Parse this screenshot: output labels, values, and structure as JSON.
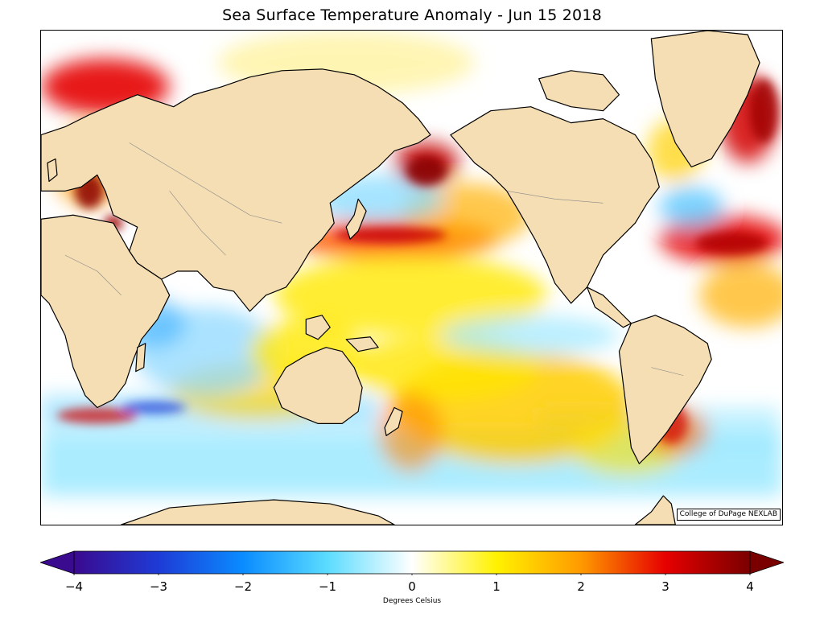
{
  "title": "Sea Surface Temperature Anomaly - Jun 15 2018",
  "credit": "College of DuPage NEXLAB",
  "colorbar": {
    "label": "Degrees Celsius",
    "min": -4,
    "max": 4,
    "ticks": [
      "−4",
      "−3",
      "−2",
      "−1",
      "0",
      "1",
      "2",
      "3",
      "4"
    ],
    "stops": [
      "#3a0a8f",
      "#1e3bd6",
      "#0a8cff",
      "#5bdcff",
      "#ffffff",
      "#fff200",
      "#ff9a00",
      "#e60000",
      "#7a0000"
    ]
  },
  "colors": {
    "land": "#f5deb3",
    "ocean": "#ffffff",
    "coastline": "#000000",
    "border": "#888888"
  }
}
